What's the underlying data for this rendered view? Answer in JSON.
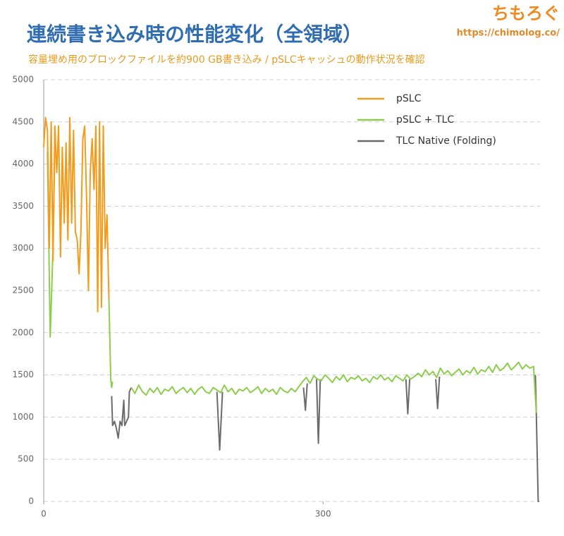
{
  "chart_data": {
    "type": "line",
    "title": "連続書き込み時の性能変化（全領域）",
    "subtitle": "容量埋め用のブロックファイルを約900 GB書き込み / pSLCキャッシュの動作状況を確認",
    "watermark": "ちもろぐ",
    "watermark_url": "https://chimolog.co/",
    "xlim": [
      0,
      533
    ],
    "xticks": [
      0,
      300
    ],
    "ylim": [
      0,
      5000
    ],
    "yticks": [
      0,
      500,
      1000,
      1500,
      2000,
      2500,
      3000,
      3500,
      4000,
      4500,
      5000
    ],
    "grid": true,
    "legend": "upper right",
    "series": [
      {
        "name": "pSLC",
        "color": "#f39b1c",
        "x": [
          0,
          2,
          4,
          6,
          8,
          10,
          12,
          14,
          16,
          18,
          20,
          22,
          24,
          26,
          28,
          30,
          32,
          34,
          36,
          38,
          40,
          42,
          44,
          46,
          48,
          50,
          52,
          54,
          56,
          58,
          60,
          62,
          64,
          66,
          68,
          70
        ],
        "values": [
          4200,
          4550,
          4400,
          3000,
          4500,
          2850,
          4450,
          3900,
          4450,
          2900,
          4200,
          3300,
          4250,
          3100,
          4550,
          3300,
          4400,
          3200,
          3100,
          2700,
          3200,
          4300,
          4450,
          3600,
          2500,
          3900,
          4300,
          3700,
          4450,
          2250,
          4500,
          2300,
          4450,
          3000,
          3400,
          2400
        ]
      },
      {
        "name": "pSLC + TLC",
        "color": "#8cce4c",
        "x": [
          4,
          7,
          10,
          12,
          null,
          70,
          72,
          73,
          74,
          null,
          94,
          98,
          102,
          106,
          110,
          114,
          118,
          122,
          126,
          130,
          134,
          138,
          142,
          146,
          150,
          154,
          158,
          162,
          166,
          170,
          174,
          178,
          182,
          186,
          190,
          194,
          198,
          202,
          206,
          210,
          214,
          218,
          222,
          226,
          230,
          234,
          238,
          242,
          246,
          250,
          254,
          258,
          262,
          266,
          270,
          274,
          278,
          282,
          286,
          290,
          294,
          298,
          302,
          306,
          310,
          314,
          318,
          322,
          326,
          330,
          334,
          338,
          342,
          346,
          350,
          354,
          358,
          362,
          366,
          370,
          374,
          378,
          382,
          386,
          390,
          394,
          398,
          402,
          406,
          410,
          414,
          418,
          422,
          426,
          430,
          434,
          438,
          442,
          446,
          450,
          454,
          458,
          462,
          466,
          470,
          474,
          478,
          482,
          486,
          490,
          494,
          498,
          502,
          506,
          510,
          514,
          518,
          522,
          526,
          529
        ],
        "values": [
          4150,
          1950,
          3000,
          4200,
          null,
          2400,
          1450,
          1350,
          1420,
          null,
          1350,
          1280,
          1380,
          1300,
          1260,
          1340,
          1290,
          1350,
          1270,
          1330,
          1310,
          1360,
          1280,
          1320,
          1350,
          1290,
          1340,
          1270,
          1330,
          1360,
          1300,
          1280,
          1350,
          1320,
          1290,
          1380,
          1300,
          1340,
          1270,
          1330,
          1310,
          1350,
          1290,
          1320,
          1360,
          1280,
          1340,
          1300,
          1330,
          1270,
          1350,
          1310,
          1290,
          1340,
          1300,
          1360,
          1420,
          1470,
          1400,
          1490,
          1450,
          1430,
          1500,
          1460,
          1410,
          1480,
          1440,
          1500,
          1420,
          1470,
          1450,
          1490,
          1430,
          1460,
          1410,
          1480,
          1450,
          1500,
          1440,
          1470,
          1420,
          1490,
          1460,
          1430,
          1500,
          1450,
          1480,
          1520,
          1480,
          1560,
          1500,
          1540,
          1470,
          1580,
          1510,
          1550,
          1490,
          1530,
          1570,
          1500,
          1550,
          1520,
          1590,
          1510,
          1560,
          1540,
          1600,
          1530,
          1620,
          1550,
          1580,
          1640,
          1560,
          1600,
          1650,
          1570,
          1620,
          1580,
          1600,
          1050
        ]
      },
      {
        "name": "TLC Native (Folding)",
        "color": "#6b6b6b",
        "x": [
          73,
          74,
          76,
          78,
          80,
          82,
          84,
          86,
          87,
          89,
          91,
          92,
          94,
          null,
          186,
          189,
          192,
          null,
          279,
          281,
          283,
          null,
          293,
          295,
          297,
          null,
          389,
          391,
          393,
          null,
          421,
          423,
          425,
          null,
          528,
          529,
          531,
          532
        ],
        "values": [
          1250,
          900,
          950,
          870,
          750,
          950,
          900,
          1200,
          900,
          950,
          1000,
          1300,
          1350,
          null,
          1300,
          610,
          1300,
          null,
          1350,
          1080,
          1400,
          null,
          1450,
          690,
          1450,
          null,
          1450,
          1040,
          1450,
          null,
          1450,
          1100,
          1480,
          null,
          1500,
          1050,
          0,
          0
        ]
      }
    ]
  }
}
